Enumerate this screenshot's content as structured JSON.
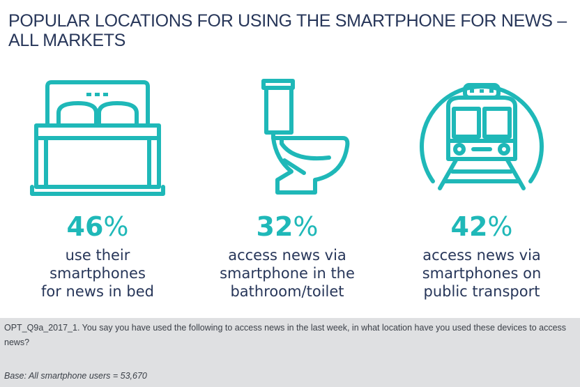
{
  "title": "POPULAR LOCATIONS FOR USING THE SMARTPHONE FOR NEWS – ALL MARKETS",
  "stats": [
    {
      "icon": "bed-icon",
      "value": "46",
      "unit": "%",
      "lines": [
        "use their",
        "smartphones",
        "for news in bed"
      ]
    },
    {
      "icon": "toilet-icon",
      "value": "32",
      "unit": "%",
      "lines": [
        "access news via",
        "smartphone in the",
        "bathroom/toilet"
      ]
    },
    {
      "icon": "train-icon",
      "value": "42",
      "unit": "%",
      "lines": [
        "access news via",
        "smartphones on",
        "public transport"
      ]
    }
  ],
  "footnote": {
    "question": "OPT_Q9a_2017_1. You say you have used the following to access news in the last week, in what location have you used these devices to access news?",
    "base": "Base: All smartphone users = 53,670"
  },
  "colors": {
    "accent": "#1fb8b8",
    "text": "#273659",
    "background": "#dfe0e2"
  }
}
